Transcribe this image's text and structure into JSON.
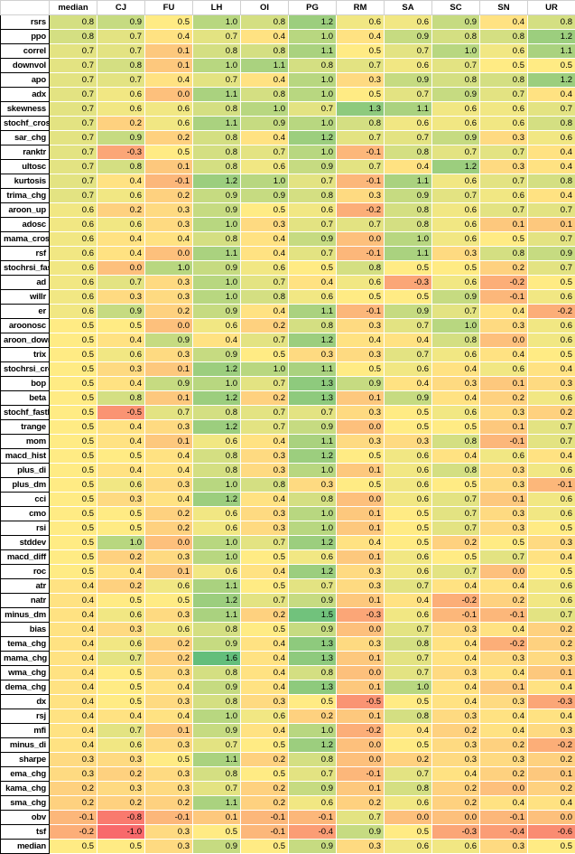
{
  "columns": [
    "",
    "median",
    "CJ",
    "FU",
    "LH",
    "OI",
    "PG",
    "RM",
    "SA",
    "SC",
    "SN",
    "UR"
  ],
  "rows": [
    {
      "label": "rsrs",
      "values": [
        "0.8",
        "0.9",
        "0.5",
        "1.0",
        "0.8",
        "1.2",
        "0.6",
        "0.6",
        "0.9",
        "0.4",
        "0.8"
      ]
    },
    {
      "label": "ppo",
      "values": [
        "0.8",
        "0.7",
        "0.4",
        "0.7",
        "0.4",
        "1.0",
        "0.4",
        "0.9",
        "0.8",
        "0.8",
        "1.2"
      ]
    },
    {
      "label": "correl",
      "values": [
        "0.7",
        "0.7",
        "0.1",
        "0.8",
        "0.8",
        "1.1",
        "0.5",
        "0.7",
        "1.0",
        "0.6",
        "1.1"
      ]
    },
    {
      "label": "downvol",
      "values": [
        "0.7",
        "0.8",
        "0.1",
        "1.0",
        "1.1",
        "0.8",
        "0.7",
        "0.6",
        "0.7",
        "0.5",
        "0.5"
      ]
    },
    {
      "label": "apo",
      "values": [
        "0.7",
        "0.7",
        "0.4",
        "0.7",
        "0.4",
        "1.0",
        "0.3",
        "0.9",
        "0.8",
        "0.8",
        "1.2"
      ]
    },
    {
      "label": "adx",
      "values": [
        "0.7",
        "0.6",
        "0.0",
        "1.1",
        "0.8",
        "1.0",
        "0.5",
        "0.7",
        "0.9",
        "0.7",
        "0.4"
      ]
    },
    {
      "label": "skewness",
      "values": [
        "0.7",
        "0.6",
        "0.6",
        "0.8",
        "1.0",
        "0.7",
        "1.3",
        "1.1",
        "0.6",
        "0.6",
        "0.7"
      ]
    },
    {
      "label": "stochf_cross",
      "values": [
        "0.7",
        "0.2",
        "0.6",
        "1.1",
        "0.9",
        "1.0",
        "0.8",
        "0.6",
        "0.6",
        "0.6",
        "0.8"
      ]
    },
    {
      "label": "sar_chg",
      "values": [
        "0.7",
        "0.9",
        "0.2",
        "0.8",
        "0.4",
        "1.2",
        "0.7",
        "0.7",
        "0.9",
        "0.3",
        "0.6"
      ]
    },
    {
      "label": "ranktr",
      "values": [
        "0.7",
        "-0.3",
        "0.5",
        "0.8",
        "0.7",
        "1.0",
        "-0.1",
        "0.8",
        "0.7",
        "0.7",
        "0.4"
      ]
    },
    {
      "label": "ultosc",
      "values": [
        "0.7",
        "0.8",
        "0.1",
        "0.8",
        "0.6",
        "0.9",
        "0.7",
        "0.4",
        "1.2",
        "0.3",
        "0.4"
      ]
    },
    {
      "label": "kurtosis",
      "values": [
        "0.7",
        "0.4",
        "-0.1",
        "1.2",
        "1.0",
        "0.7",
        "-0.1",
        "1.1",
        "0.6",
        "0.7",
        "0.8"
      ]
    },
    {
      "label": "trima_chg",
      "values": [
        "0.7",
        "0.6",
        "0.2",
        "0.9",
        "0.9",
        "0.8",
        "0.3",
        "0.9",
        "0.7",
        "0.6",
        "0.4"
      ]
    },
    {
      "label": "aroon_up",
      "values": [
        "0.6",
        "0.2",
        "0.3",
        "0.9",
        "0.5",
        "0.6",
        "-0.2",
        "0.8",
        "0.6",
        "0.7",
        "0.7"
      ]
    },
    {
      "label": "adosc",
      "values": [
        "0.6",
        "0.6",
        "0.3",
        "1.0",
        "0.3",
        "0.7",
        "0.7",
        "0.8",
        "0.6",
        "0.1",
        "0.1"
      ]
    },
    {
      "label": "mama_cross",
      "values": [
        "0.6",
        "0.4",
        "0.4",
        "0.8",
        "0.4",
        "0.9",
        "0.0",
        "1.0",
        "0.6",
        "0.5",
        "0.7"
      ]
    },
    {
      "label": "rsf",
      "values": [
        "0.6",
        "0.4",
        "0.0",
        "1.1",
        "0.4",
        "0.7",
        "-0.1",
        "1.1",
        "0.3",
        "0.8",
        "0.9"
      ]
    },
    {
      "label": "stochrsi_fastd",
      "values": [
        "0.6",
        "0.0",
        "1.0",
        "0.9",
        "0.6",
        "0.5",
        "0.8",
        "0.5",
        "0.5",
        "0.2",
        "0.7"
      ]
    },
    {
      "label": "ad",
      "values": [
        "0.6",
        "0.7",
        "0.3",
        "1.0",
        "0.7",
        "0.4",
        "0.6",
        "-0.3",
        "0.6",
        "-0.2",
        "0.5"
      ]
    },
    {
      "label": "willr",
      "values": [
        "0.6",
        "0.3",
        "0.3",
        "1.0",
        "0.8",
        "0.6",
        "0.5",
        "0.5",
        "0.9",
        "-0.1",
        "0.6"
      ]
    },
    {
      "label": "er",
      "values": [
        "0.6",
        "0.9",
        "0.2",
        "0.9",
        "0.4",
        "1.1",
        "-0.1",
        "0.9",
        "0.7",
        "0.4",
        "-0.2"
      ]
    },
    {
      "label": "aroonosc",
      "values": [
        "0.5",
        "0.5",
        "0.0",
        "0.6",
        "0.2",
        "0.8",
        "0.3",
        "0.7",
        "1.0",
        "0.3",
        "0.6"
      ]
    },
    {
      "label": "aroon_down",
      "values": [
        "0.5",
        "0.4",
        "0.9",
        "0.4",
        "0.7",
        "1.2",
        "0.4",
        "0.4",
        "0.8",
        "0.0",
        "0.6"
      ]
    },
    {
      "label": "trix",
      "values": [
        "0.5",
        "0.6",
        "0.3",
        "0.9",
        "0.5",
        "0.3",
        "0.3",
        "0.7",
        "0.6",
        "0.4",
        "0.5"
      ]
    },
    {
      "label": "stochrsi_cross",
      "values": [
        "0.5",
        "0.3",
        "0.1",
        "1.2",
        "1.0",
        "1.1",
        "0.5",
        "0.6",
        "0.4",
        "0.6",
        "0.4"
      ]
    },
    {
      "label": "bop",
      "values": [
        "0.5",
        "0.4",
        "0.9",
        "1.0",
        "0.7",
        "1.3",
        "0.9",
        "0.4",
        "0.3",
        "0.1",
        "0.3"
      ]
    },
    {
      "label": "beta",
      "values": [
        "0.5",
        "0.8",
        "0.1",
        "1.2",
        "0.2",
        "1.3",
        "0.1",
        "0.9",
        "0.4",
        "0.2",
        "0.6"
      ]
    },
    {
      "label": "stochf_fastk",
      "values": [
        "0.5",
        "-0.5",
        "0.7",
        "0.8",
        "0.7",
        "0.7",
        "0.3",
        "0.5",
        "0.6",
        "0.3",
        "0.2"
      ]
    },
    {
      "label": "trange",
      "values": [
        "0.5",
        "0.4",
        "0.3",
        "1.2",
        "0.7",
        "0.9",
        "0.0",
        "0.5",
        "0.5",
        "0.1",
        "0.7"
      ]
    },
    {
      "label": "mom",
      "values": [
        "0.5",
        "0.4",
        "0.1",
        "0.6",
        "0.4",
        "1.1",
        "0.3",
        "0.3",
        "0.8",
        "-0.1",
        "0.7"
      ]
    },
    {
      "label": "macd_hist",
      "values": [
        "0.5",
        "0.5",
        "0.4",
        "0.8",
        "0.3",
        "1.2",
        "0.5",
        "0.6",
        "0.4",
        "0.6",
        "0.4"
      ]
    },
    {
      "label": "plus_di",
      "values": [
        "0.5",
        "0.4",
        "0.4",
        "0.8",
        "0.3",
        "1.0",
        "0.1",
        "0.6",
        "0.8",
        "0.3",
        "0.6"
      ]
    },
    {
      "label": "plus_dm",
      "values": [
        "0.5",
        "0.6",
        "0.3",
        "1.0",
        "0.8",
        "0.3",
        "0.5",
        "0.6",
        "0.5",
        "0.3",
        "-0.1"
      ]
    },
    {
      "label": "cci",
      "values": [
        "0.5",
        "0.3",
        "0.4",
        "1.2",
        "0.4",
        "0.8",
        "0.0",
        "0.6",
        "0.7",
        "0.1",
        "0.6"
      ]
    },
    {
      "label": "cmo",
      "values": [
        "0.5",
        "0.5",
        "0.2",
        "0.6",
        "0.3",
        "1.0",
        "0.1",
        "0.5",
        "0.7",
        "0.3",
        "0.6"
      ]
    },
    {
      "label": "rsi",
      "values": [
        "0.5",
        "0.5",
        "0.2",
        "0.6",
        "0.3",
        "1.0",
        "0.1",
        "0.5",
        "0.7",
        "0.3",
        "0.5"
      ]
    },
    {
      "label": "stddev",
      "values": [
        "0.5",
        "1.0",
        "0.0",
        "1.0",
        "0.7",
        "1.2",
        "0.4",
        "0.5",
        "0.2",
        "0.5",
        "0.3"
      ]
    },
    {
      "label": "macd_diff",
      "values": [
        "0.5",
        "0.2",
        "0.3",
        "1.0",
        "0.5",
        "0.6",
        "0.1",
        "0.6",
        "0.5",
        "0.7",
        "0.4"
      ]
    },
    {
      "label": "roc",
      "values": [
        "0.5",
        "0.4",
        "0.1",
        "0.6",
        "0.4",
        "1.2",
        "0.3",
        "0.6",
        "0.7",
        "0.0",
        "0.5"
      ]
    },
    {
      "label": "atr",
      "values": [
        "0.4",
        "0.2",
        "0.6",
        "1.1",
        "0.5",
        "0.7",
        "0.3",
        "0.7",
        "0.4",
        "0.4",
        "0.6"
      ]
    },
    {
      "label": "natr",
      "values": [
        "0.4",
        "0.5",
        "0.5",
        "1.2",
        "0.7",
        "0.9",
        "0.1",
        "0.4",
        "-0.2",
        "0.2",
        "0.6"
      ]
    },
    {
      "label": "minus_dm",
      "values": [
        "0.4",
        "0.6",
        "0.3",
        "1.1",
        "0.2",
        "1.5",
        "-0.3",
        "0.6",
        "-0.1",
        "-0.1",
        "0.7"
      ]
    },
    {
      "label": "bias",
      "values": [
        "0.4",
        "0.3",
        "0.6",
        "0.8",
        "0.5",
        "0.9",
        "0.0",
        "0.7",
        "0.3",
        "0.4",
        "0.2"
      ]
    },
    {
      "label": "tema_chg",
      "values": [
        "0.4",
        "0.6",
        "0.2",
        "0.9",
        "0.4",
        "1.3",
        "0.3",
        "0.8",
        "0.4",
        "-0.2",
        "0.2"
      ]
    },
    {
      "label": "mama_chg",
      "values": [
        "0.4",
        "0.7",
        "0.2",
        "1.6",
        "0.4",
        "1.3",
        "0.1",
        "0.7",
        "0.4",
        "0.3",
        "0.3"
      ]
    },
    {
      "label": "wma_chg",
      "values": [
        "0.4",
        "0.5",
        "0.3",
        "0.8",
        "0.4",
        "0.8",
        "0.0",
        "0.7",
        "0.3",
        "0.4",
        "0.1"
      ]
    },
    {
      "label": "dema_chg",
      "values": [
        "0.4",
        "0.5",
        "0.4",
        "0.9",
        "0.4",
        "1.3",
        "0.1",
        "1.0",
        "0.4",
        "0.1",
        "0.4"
      ]
    },
    {
      "label": "dx",
      "values": [
        "0.4",
        "0.5",
        "0.3",
        "0.8",
        "0.3",
        "0.5",
        "-0.5",
        "0.5",
        "0.4",
        "0.3",
        "-0.3"
      ]
    },
    {
      "label": "rsj",
      "values": [
        "0.4",
        "0.4",
        "0.4",
        "1.0",
        "0.6",
        "0.2",
        "0.1",
        "0.8",
        "0.3",
        "0.4",
        "0.4"
      ]
    },
    {
      "label": "mfi",
      "values": [
        "0.4",
        "0.7",
        "0.1",
        "0.9",
        "0.4",
        "1.0",
        "-0.2",
        "0.4",
        "0.2",
        "0.4",
        "0.3"
      ]
    },
    {
      "label": "minus_di",
      "values": [
        "0.4",
        "0.6",
        "0.3",
        "0.7",
        "0.5",
        "1.2",
        "0.0",
        "0.5",
        "0.3",
        "0.2",
        "-0.2"
      ]
    },
    {
      "label": "sharpe",
      "values": [
        "0.3",
        "0.3",
        "0.5",
        "1.1",
        "0.2",
        "0.8",
        "0.0",
        "0.2",
        "0.3",
        "0.3",
        "0.2"
      ]
    },
    {
      "label": "ema_chg",
      "values": [
        "0.3",
        "0.2",
        "0.3",
        "0.8",
        "0.5",
        "0.7",
        "-0.1",
        "0.7",
        "0.4",
        "0.2",
        "0.1"
      ]
    },
    {
      "label": "kama_chg",
      "values": [
        "0.2",
        "0.3",
        "0.3",
        "0.7",
        "0.2",
        "0.9",
        "0.1",
        "0.8",
        "0.2",
        "0.0",
        "0.2"
      ]
    },
    {
      "label": "sma_chg",
      "values": [
        "0.2",
        "0.2",
        "0.2",
        "1.1",
        "0.2",
        "0.6",
        "0.2",
        "0.6",
        "0.2",
        "0.4",
        "0.4"
      ]
    },
    {
      "label": "obv",
      "values": [
        "-0.1",
        "-0.8",
        "-0.1",
        "0.1",
        "-0.1",
        "-0.1",
        "0.7",
        "0.0",
        "0.0",
        "-0.1",
        "0.0"
      ]
    },
    {
      "label": "tsf",
      "values": [
        "-0.2",
        "-1.0",
        "0.3",
        "0.5",
        "-0.1",
        "-0.4",
        "0.9",
        "0.5",
        "-0.3",
        "-0.4",
        "-0.6"
      ]
    },
    {
      "label": "median",
      "values": [
        "0.5",
        "0.5",
        "0.3",
        "0.9",
        "0.5",
        "0.9",
        "0.3",
        "0.6",
        "0.6",
        "0.3",
        "0.5"
      ]
    }
  ],
  "colors": {
    "low": "#f8696b",
    "mid": "#ffeb84",
    "high": "#63be7b"
  }
}
